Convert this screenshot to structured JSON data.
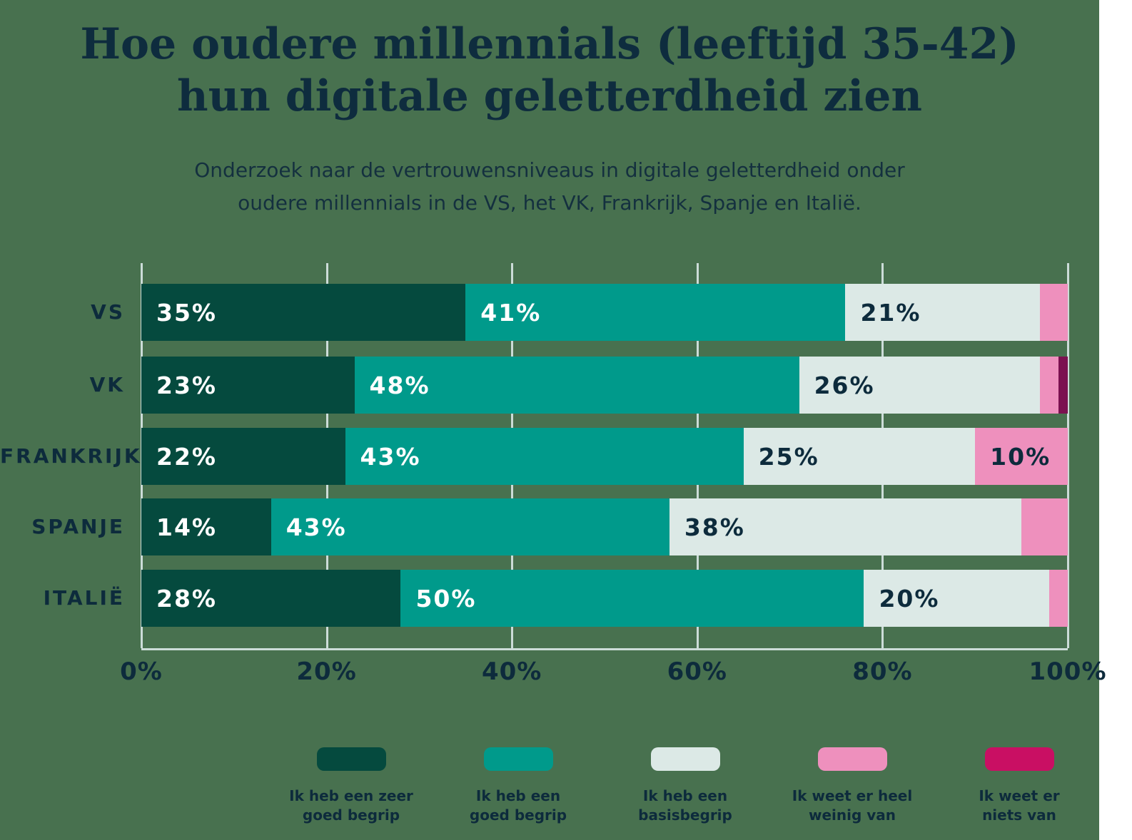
{
  "title": {
    "line1": "Hoe oudere millennials (leeftijd 35-42)",
    "line2": "hun digitale geletterdheid zien"
  },
  "subtitle": {
    "line1": "Onderzoek naar de vertrouwensniveaus in digitale geletterdheid onder",
    "line2": "oudere millennials in de VS, het VK, Frankrijk, Spanje en Italië."
  },
  "colors": {
    "background": "#48714f",
    "gridline": "#ccdcd8",
    "text_dark": "#0d2b3c",
    "text_light": "#ffffff",
    "series": [
      "#054a3e",
      "#009a8b",
      "#dce9e6",
      "#ee90bd",
      "#c90f63"
    ]
  },
  "axis": {
    "ticks": [
      "0%",
      "20%",
      "40%",
      "60%",
      "80%",
      "100%"
    ]
  },
  "rows": [
    {
      "label": "VS",
      "segments": [
        {
          "value": 35,
          "series": 0,
          "text": "35%"
        },
        {
          "value": 41,
          "series": 1,
          "text": "41%"
        },
        {
          "value": 21,
          "series": 2,
          "text": "21%"
        },
        {
          "value": 3,
          "series": 3,
          "text": ""
        }
      ]
    },
    {
      "label": "VK",
      "segments": [
        {
          "value": 23,
          "series": 0,
          "text": "23%"
        },
        {
          "value": 48,
          "series": 1,
          "text": "48%"
        },
        {
          "value": 26,
          "series": 2,
          "text": "26%"
        },
        {
          "value": 2,
          "series": 3,
          "text": ""
        },
        {
          "value": 1,
          "series": 4,
          "text": "",
          "color": "#7b1150"
        }
      ]
    },
    {
      "label": "FRANKRIJK",
      "segments": [
        {
          "value": 22,
          "series": 0,
          "text": "22%"
        },
        {
          "value": 43,
          "series": 1,
          "text": "43%"
        },
        {
          "value": 25,
          "series": 2,
          "text": "25%"
        },
        {
          "value": 10,
          "series": 3,
          "text": "10%"
        }
      ]
    },
    {
      "label": "SPANJE",
      "segments": [
        {
          "value": 14,
          "series": 0,
          "text": "14%"
        },
        {
          "value": 43,
          "series": 1,
          "text": "43%"
        },
        {
          "value": 38,
          "series": 2,
          "text": "38%"
        },
        {
          "value": 5,
          "series": 3,
          "text": ""
        }
      ]
    },
    {
      "label": "ITALIË",
      "segments": [
        {
          "value": 28,
          "series": 0,
          "text": "28%"
        },
        {
          "value": 50,
          "series": 1,
          "text": "50%"
        },
        {
          "value": 20,
          "series": 2,
          "text": "20%"
        },
        {
          "value": 2,
          "series": 3,
          "text": ""
        }
      ]
    }
  ],
  "legend": {
    "items": [
      {
        "line1": "Ik heb een zeer",
        "line2": "goed begrip",
        "color": "#054a3e"
      },
      {
        "line1": "Ik heb een",
        "line2": "goed begrip",
        "color": "#009a8b"
      },
      {
        "line1": "Ik heb een",
        "line2": "basisbegrip",
        "color": "#dce9e6"
      },
      {
        "line1": "Ik weet er heel",
        "line2": "weinig van",
        "color": "#ee90bd"
      },
      {
        "line1": "Ik weet er",
        "line2": "niets van",
        "color": "#c90f63"
      }
    ]
  },
  "chart_data": {
    "type": "bar",
    "orientation": "horizontal-stacked",
    "title": "Hoe oudere millennials (leeftijd 35-42) hun digitale geletterdheid zien",
    "subtitle": "Onderzoek naar de vertrouwensniveaus in digitale geletterdheid onder oudere millennials in de VS, het VK, Frankrijk, Spanje en Italië.",
    "categories": [
      "VS",
      "VK",
      "FRANKRIJK",
      "SPANJE",
      "ITALIË"
    ],
    "series": [
      {
        "name": "Ik heb een zeer goed begrip",
        "color": "#054a3e",
        "values": [
          35,
          23,
          22,
          14,
          28
        ]
      },
      {
        "name": "Ik heb een goed begrip",
        "color": "#009a8b",
        "values": [
          41,
          48,
          43,
          43,
          50
        ]
      },
      {
        "name": "Ik heb een basisbegrip",
        "color": "#dce9e6",
        "values": [
          21,
          26,
          25,
          38,
          20
        ]
      },
      {
        "name": "Ik weet er heel weinig van",
        "color": "#ee90bd",
        "values": [
          3,
          2,
          10,
          5,
          2
        ]
      },
      {
        "name": "Ik weet er niets van",
        "color": "#c90f63",
        "values": [
          0,
          1,
          0,
          0,
          0
        ]
      }
    ],
    "xlabel": "",
    "ylabel": "",
    "xlim": [
      0,
      100
    ],
    "x_ticks": [
      "0%",
      "20%",
      "40%",
      "60%",
      "80%",
      "100%"
    ],
    "grid": true,
    "legend_position": "bottom"
  }
}
